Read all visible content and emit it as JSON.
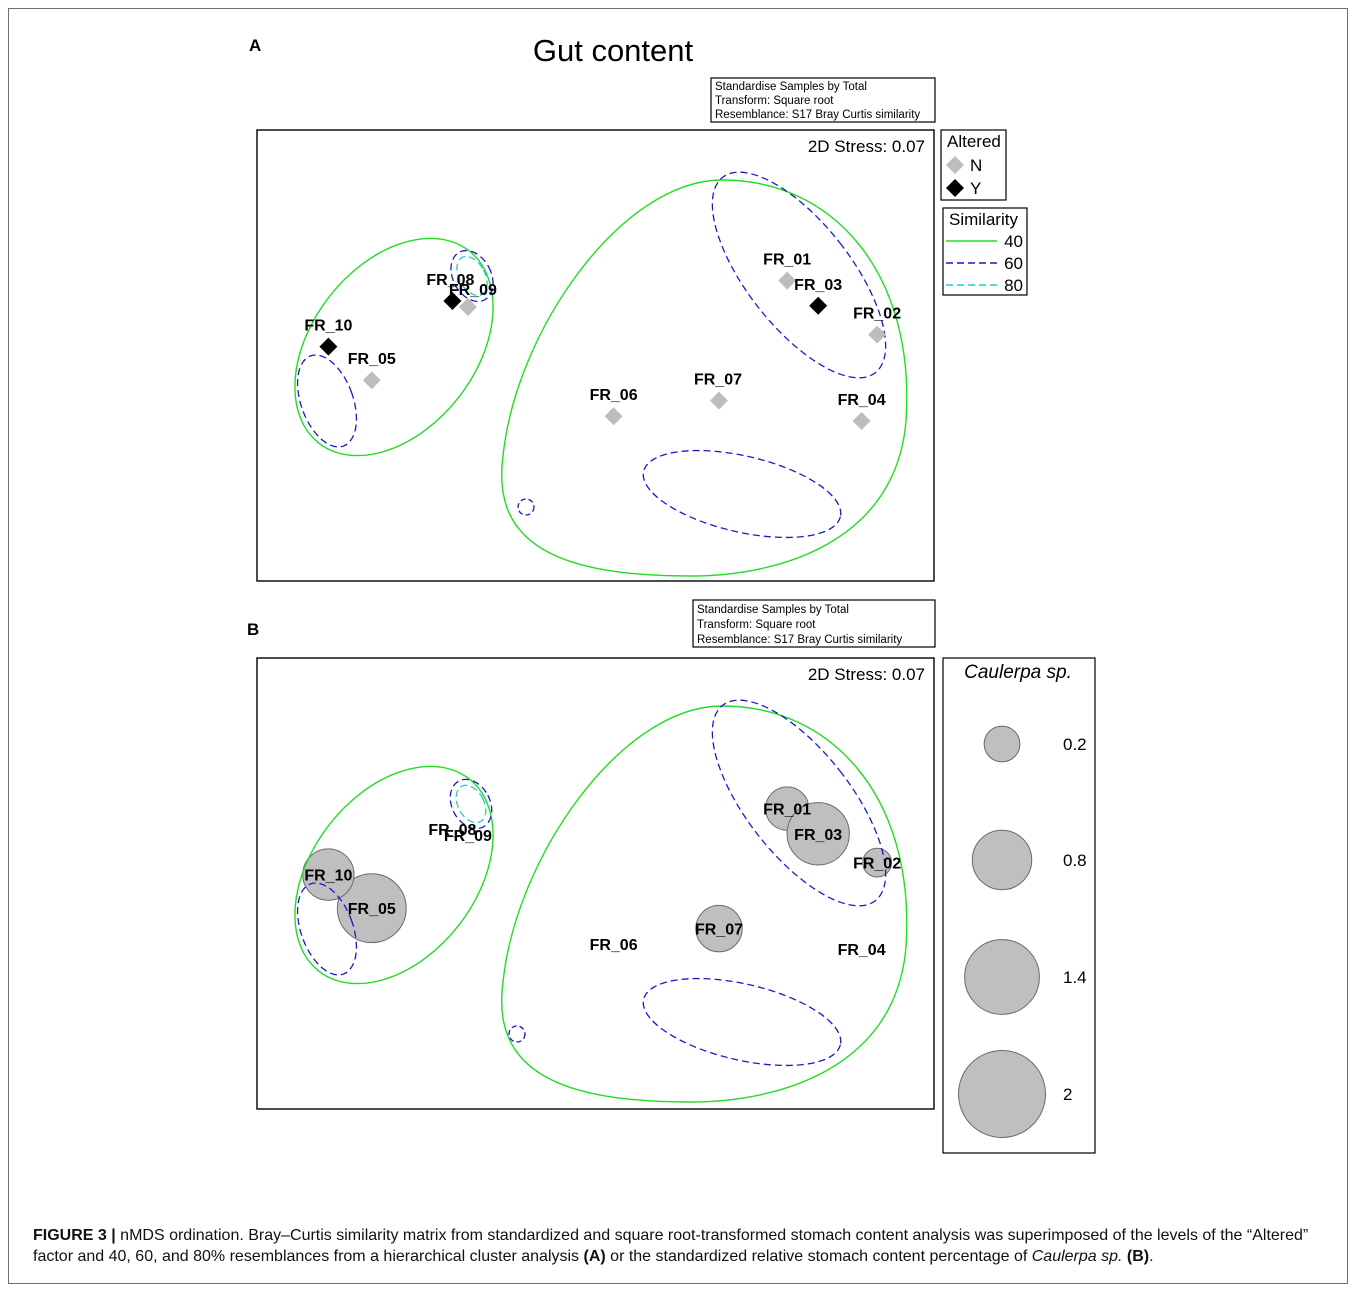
{
  "panel_a": {
    "letter": "A",
    "title": "Gut content",
    "info_box": [
      "Standardise Samples by Total",
      "Transform: Square root",
      "Resemblance: S17 Bray Curtis similarity"
    ],
    "stress": "2D Stress: 0.07",
    "legend_altered": {
      "title": "Altered",
      "items": [
        {
          "label": "N",
          "color": "#bdbdbd"
        },
        {
          "label": "Y",
          "color": "#000000"
        }
      ]
    },
    "legend_similarity": {
      "title": "Similarity",
      "items": [
        {
          "label": "40",
          "color": "#22dd22",
          "dash": "solid"
        },
        {
          "label": "60",
          "color": "#1a1acc",
          "dash": "dashed"
        },
        {
          "label": "80",
          "color": "#22cccc",
          "dash": "dashed"
        }
      ]
    }
  },
  "panel_b": {
    "letter": "B",
    "info_box": [
      "Standardise Samples by Total",
      "Transform: Square root",
      "Resemblance: S17 Bray Curtis similarity"
    ],
    "stress": "2D Stress: 0.07",
    "legend_size": {
      "title": "Caulerpa sp.",
      "items": [
        {
          "label": "0.2",
          "value": 0.2
        },
        {
          "label": "0.8",
          "value": 0.8
        },
        {
          "label": "1.4",
          "value": 1.4
        },
        {
          "label": "2",
          "value": 2
        }
      ]
    }
  },
  "caption": {
    "label": "FIGURE 3 |",
    "text_1": " nMDS ordination. Bray–Curtis similarity matrix from standardized and square root-transformed stomach content analysis was superimposed of the levels of the “Altered” factor and 40, 60, and 80% resemblances from a hierarchical cluster analysis ",
    "ref_a": "(A)",
    "text_2": " or the standardized relative stomach content percentage of ",
    "species": "Caulerpa sp.",
    "text_3": " ",
    "ref_b": "(B)",
    "text_4": "."
  },
  "chart_data": [
    {
      "type": "scatter",
      "title": "Gut content",
      "subtitle": "2D Stress: 0.07",
      "points": [
        {
          "label": "FR_01",
          "x": 0.62,
          "y": 0.87,
          "altered": "N"
        },
        {
          "label": "FR_02",
          "x": 0.91,
          "y": 0.42,
          "altered": "N"
        },
        {
          "label": "FR_03",
          "x": 0.72,
          "y": 0.66,
          "altered": "Y"
        },
        {
          "label": "FR_04",
          "x": 0.86,
          "y": -0.3,
          "altered": "N"
        },
        {
          "label": "FR_05",
          "x": -0.72,
          "y": 0.04,
          "altered": "N"
        },
        {
          "label": "FR_06",
          "x": 0.06,
          "y": -0.26,
          "altered": "N"
        },
        {
          "label": "FR_07",
          "x": 0.4,
          "y": -0.13,
          "altered": "N"
        },
        {
          "label": "FR_08",
          "x": -0.46,
          "y": 0.7,
          "altered": "Y"
        },
        {
          "label": "FR_09",
          "x": -0.41,
          "y": 0.65,
          "altered": "N"
        },
        {
          "label": "FR_10",
          "x": -0.86,
          "y": 0.32,
          "altered": "Y"
        }
      ],
      "clusters": [
        {
          "similarity": 40,
          "members": [
            "FR_05",
            "FR_08",
            "FR_09",
            "FR_10"
          ]
        },
        {
          "similarity": 40,
          "members": [
            "FR_01",
            "FR_02",
            "FR_03",
            "FR_04",
            "FR_06",
            "FR_07"
          ]
        },
        {
          "similarity": 60,
          "members": [
            "FR_08",
            "FR_09"
          ]
        },
        {
          "similarity": 60,
          "members": [
            "FR_05",
            "FR_10"
          ]
        },
        {
          "similarity": 60,
          "members": [
            "FR_01",
            "FR_02",
            "FR_03"
          ]
        },
        {
          "similarity": 60,
          "members": [
            "FR_04",
            "FR_07"
          ]
        },
        {
          "similarity": 60,
          "members": [
            "FR_06"
          ]
        },
        {
          "similarity": 80,
          "members": [
            "FR_08",
            "FR_09"
          ]
        }
      ]
    },
    {
      "type": "scatter",
      "subtitle": "2D Stress: 0.07",
      "size_variable": "Caulerpa sp.",
      "points": [
        {
          "label": "FR_01",
          "size": 0.35
        },
        {
          "label": "FR_02",
          "size": 0.1
        },
        {
          "label": "FR_03",
          "size": 0.9
        },
        {
          "label": "FR_04",
          "size": 0
        },
        {
          "label": "FR_05",
          "size": 1.15
        },
        {
          "label": "FR_06",
          "size": 0
        },
        {
          "label": "FR_07",
          "size": 0.42
        },
        {
          "label": "FR_08",
          "size": 0
        },
        {
          "label": "FR_09",
          "size": 0
        },
        {
          "label": "FR_10",
          "size": 0.55
        }
      ]
    }
  ]
}
